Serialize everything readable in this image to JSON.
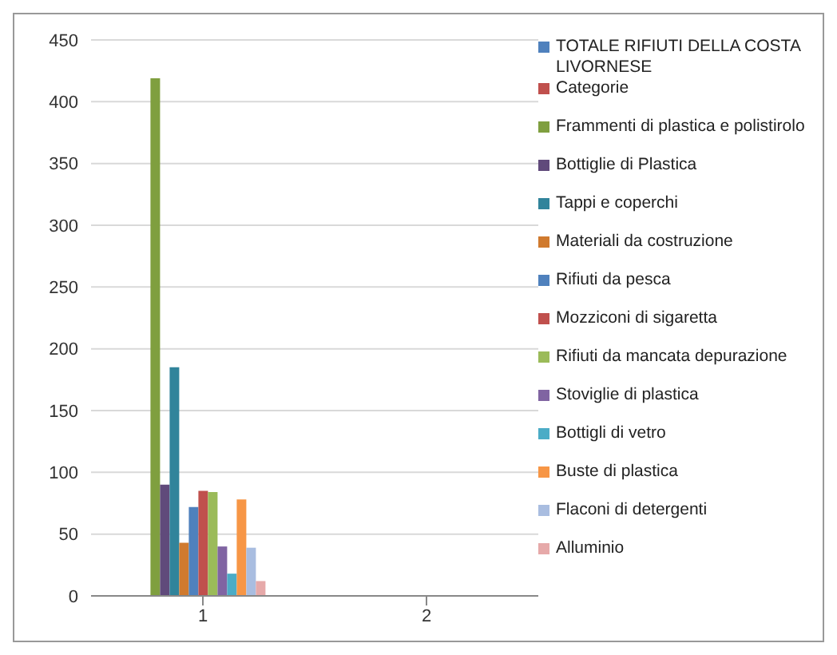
{
  "chart_data": {
    "type": "bar",
    "categories": [
      "1",
      "2"
    ],
    "series": [
      {
        "name": "TOTALE RIFIUTI DELLA COSTA LIVORNESE",
        "color": "#4f81bd",
        "values": [
          null,
          null
        ]
      },
      {
        "name": "Categorie",
        "color": "#c0504d",
        "values": [
          null,
          null
        ]
      },
      {
        "name": "Frammenti di plastica e polistirolo",
        "color": "#7f9f3f",
        "values": [
          419,
          null
        ]
      },
      {
        "name": "Bottiglie di Plastica",
        "color": "#604a7b",
        "values": [
          90,
          null
        ]
      },
      {
        "name": "Tappi e coperchi",
        "color": "#31849b",
        "values": [
          185,
          null
        ]
      },
      {
        "name": "Materiali da costruzione",
        "color": "#d07a2e",
        "values": [
          43,
          null
        ]
      },
      {
        "name": "Rifiuti da pesca",
        "color": "#4f81bd",
        "values": [
          72,
          null
        ]
      },
      {
        "name": "Mozziconi di sigaretta",
        "color": "#c0504d",
        "values": [
          85,
          null
        ]
      },
      {
        "name": "Rifiuti da mancata depurazione",
        "color": "#9bbb59",
        "values": [
          84,
          null
        ]
      },
      {
        "name": "Stoviglie di plastica",
        "color": "#8064a2",
        "values": [
          40,
          null
        ]
      },
      {
        "name": "Bottigli di vetro",
        "color": "#4bacc6",
        "values": [
          18,
          null
        ]
      },
      {
        "name": "Buste di plastica",
        "color": "#f79646",
        "values": [
          78,
          null
        ]
      },
      {
        "name": "Flaconi di detergenti",
        "color": "#a9bde0",
        "values": [
          39,
          null
        ]
      },
      {
        "name": "Alluminio",
        "color": "#e6a9a9",
        "values": [
          12,
          null
        ]
      }
    ],
    "ylim": [
      0,
      450
    ],
    "yticks": [
      0,
      50,
      100,
      150,
      200,
      250,
      300,
      350,
      400,
      450
    ],
    "grid": "y",
    "legend": "right"
  }
}
